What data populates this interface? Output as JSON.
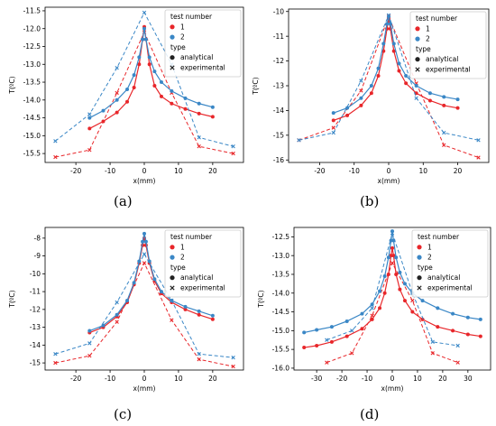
{
  "figure": {
    "legend_title_series": "test number",
    "legend_title_type": "type",
    "legend_type_entries": [
      "analytical",
      "experimental"
    ],
    "series_colors": {
      "1": "#e8262a",
      "2": "#3a87c6"
    }
  },
  "chart_data": [
    {
      "panel": "(a)",
      "type": "line",
      "xlabel": "x(mm)",
      "ylabel": "T(ºC)",
      "xlim": [
        -29,
        29
      ],
      "ylim": [
        -15.75,
        -11.4
      ],
      "xticks": [
        -20,
        -10,
        0,
        10,
        20
      ],
      "yticks": [
        -15.5,
        -15.0,
        -14.5,
        -14.0,
        -13.5,
        -13.0,
        -12.5,
        -12.0,
        -11.5
      ],
      "ytick_labels": [
        "-15.5",
        "-15.0",
        "-14.5",
        "-14.0",
        "-13.5",
        "-13.0",
        "-12.5",
        "-12.0",
        "-11.5"
      ],
      "legend_placement": "top-right",
      "series": [
        {
          "name": "1",
          "analytical": {
            "x": [
              -16,
              -12,
              -8,
              -5,
              -3,
              -1.5,
              -0.5,
              0,
              0.5,
              1.5,
              3,
              5,
              8,
              12,
              16,
              20
            ],
            "y": [
              -14.8,
              -14.6,
              -14.35,
              -14.05,
              -13.65,
              -13.0,
              -12.3,
              -11.95,
              -12.3,
              -13.0,
              -13.6,
              -13.9,
              -14.1,
              -14.25,
              -14.38,
              -14.47
            ]
          },
          "experimental": {
            "x": [
              -26,
              -16,
              -8,
              0,
              8,
              16,
              26
            ],
            "y": [
              -15.6,
              -15.4,
              -13.8,
              -12.1,
              -13.8,
              -15.3,
              -15.5
            ]
          }
        },
        {
          "name": "2",
          "analytical": {
            "x": [
              -16,
              -12,
              -8,
              -5,
              -3,
              -1.5,
              -0.5,
              0,
              0.5,
              1.5,
              3,
              5,
              8,
              12,
              16,
              20
            ],
            "y": [
              -14.5,
              -14.3,
              -14.0,
              -13.7,
              -13.3,
              -12.8,
              -12.3,
              -12.0,
              -12.3,
              -12.8,
              -13.2,
              -13.5,
              -13.75,
              -13.95,
              -14.1,
              -14.2
            ]
          },
          "experimental": {
            "x": [
              -26,
              -16,
              -8,
              0,
              8,
              16,
              26
            ],
            "y": [
              -15.15,
              -14.4,
              -13.1,
              -11.55,
              -13.0,
              -15.05,
              -15.3
            ]
          }
        }
      ]
    },
    {
      "panel": "(b)",
      "type": "line",
      "xlabel": "x(mm)",
      "ylabel": "T(ºC)",
      "xlim": [
        -29,
        29
      ],
      "ylim": [
        -16.1,
        -9.9
      ],
      "xticks": [
        -20,
        -10,
        0,
        10,
        20
      ],
      "yticks": [
        -16,
        -15,
        -14,
        -13,
        -12,
        -11,
        -10
      ],
      "ytick_labels": [
        "-16",
        "-15",
        "-14",
        "-13",
        "-12",
        "-11",
        "-10"
      ],
      "legend_placement": "top-right",
      "series": [
        {
          "name": "1",
          "analytical": {
            "x": [
              -16,
              -12,
              -8,
              -5,
              -3,
              -1.5,
              -0.5,
              0,
              0.5,
              1.5,
              3,
              5,
              8,
              12,
              16,
              20
            ],
            "y": [
              -14.4,
              -14.2,
              -13.8,
              -13.3,
              -12.6,
              -11.6,
              -10.7,
              -10.3,
              -10.7,
              -11.6,
              -12.4,
              -12.9,
              -13.3,
              -13.6,
              -13.8,
              -13.9
            ]
          },
          "experimental": {
            "x": [
              -26,
              -16,
              -8,
              0,
              8,
              16,
              26
            ],
            "y": [
              -15.2,
              -14.7,
              -13.2,
              -10.2,
              -12.9,
              -15.4,
              -15.9
            ]
          }
        },
        {
          "name": "2",
          "analytical": {
            "x": [
              -16,
              -12,
              -8,
              -5,
              -3,
              -1.5,
              -0.5,
              0,
              0.5,
              1.5,
              3,
              5,
              8,
              12,
              16,
              20
            ],
            "y": [
              -14.1,
              -13.9,
              -13.5,
              -13.0,
              -12.3,
              -11.3,
              -10.5,
              -10.2,
              -10.5,
              -11.3,
              -12.1,
              -12.6,
              -13.0,
              -13.3,
              -13.45,
              -13.55
            ]
          },
          "experimental": {
            "x": [
              -26,
              -16,
              -8,
              0,
              8,
              16,
              26
            ],
            "y": [
              -15.2,
              -14.9,
              -12.8,
              -10.15,
              -13.5,
              -14.9,
              -15.2
            ]
          }
        }
      ]
    },
    {
      "panel": "(c)",
      "type": "line",
      "xlabel": "x(mm)",
      "ylabel": "T(ºC)",
      "xlim": [
        -29,
        29
      ],
      "ylim": [
        -15.4,
        -7.4
      ],
      "xticks": [
        -20,
        -10,
        0,
        10,
        20
      ],
      "yticks": [
        -15,
        -14,
        -13,
        -12,
        -11,
        -10,
        -9,
        -8
      ],
      "ytick_labels": [
        "-15",
        "-14",
        "-13",
        "-12",
        "-11",
        "-10",
        "-9",
        "-8"
      ],
      "legend_placement": "top-right",
      "series": [
        {
          "name": "1",
          "analytical": {
            "x": [
              -16,
              -12,
              -8,
              -5,
              -3,
              -1.5,
              -0.5,
              0,
              0.5,
              1.5,
              3,
              5,
              8,
              12,
              16,
              20
            ],
            "y": [
              -13.3,
              -13.0,
              -12.4,
              -11.6,
              -10.6,
              -9.4,
              -8.4,
              -8.0,
              -8.4,
              -9.4,
              -10.4,
              -11.1,
              -11.6,
              -12.0,
              -12.3,
              -12.55
            ]
          },
          "experimental": {
            "x": [
              -26,
              -16,
              -8,
              0,
              8,
              16,
              26
            ],
            "y": [
              -15.0,
              -14.6,
              -12.7,
              -9.4,
              -12.6,
              -14.8,
              -15.2
            ]
          }
        },
        {
          "name": "2",
          "analytical": {
            "x": [
              -16,
              -12,
              -8,
              -5,
              -3,
              -1.5,
              -0.5,
              0,
              0.5,
              1.5,
              3,
              5,
              8,
              12,
              16,
              20
            ],
            "y": [
              -13.2,
              -12.9,
              -12.3,
              -11.5,
              -10.5,
              -9.3,
              -8.2,
              -7.75,
              -8.2,
              -9.3,
              -10.3,
              -11.0,
              -11.5,
              -11.85,
              -12.1,
              -12.35
            ]
          },
          "experimental": {
            "x": [
              -26,
              -16,
              -8,
              0,
              8,
              16,
              26
            ],
            "y": [
              -14.5,
              -13.9,
              -11.6,
              -8.9,
              -11.5,
              -14.5,
              -14.7
            ]
          }
        }
      ]
    },
    {
      "panel": "(d)",
      "type": "line",
      "xlabel": "x(mm)",
      "ylabel": "T(ºC)",
      "xlim": [
        -39,
        39
      ],
      "ylim": [
        -16.05,
        -12.25
      ],
      "xticks": [
        -30,
        -20,
        -10,
        0,
        10,
        20,
        30
      ],
      "yticks": [
        -16.0,
        -15.5,
        -15.0,
        -14.5,
        -14.0,
        -13.5,
        -13.0,
        -12.5
      ],
      "ytick_labels": [
        "-16.0",
        "-15.5",
        "-15.0",
        "-14.5",
        "-14.0",
        "-13.5",
        "-13.0",
        "-12.5"
      ],
      "legend_placement": "top-right",
      "series": [
        {
          "name": "1",
          "analytical": {
            "x": [
              -35,
              -30,
              -24,
              -18,
              -12,
              -8,
              -5,
              -3,
              -1.5,
              -0.5,
              0,
              0.5,
              1.5,
              3,
              5,
              8,
              12,
              18,
              24,
              30,
              35
            ],
            "y": [
              -15.45,
              -15.4,
              -15.3,
              -15.15,
              -14.95,
              -14.7,
              -14.4,
              -14.0,
              -13.5,
              -13.0,
              -12.8,
              -13.0,
              -13.5,
              -13.9,
              -14.2,
              -14.5,
              -14.7,
              -14.9,
              -15.0,
              -15.1,
              -15.15
            ]
          },
          "experimental": {
            "x": [
              -26,
              -16,
              -8,
              0,
              8,
              16,
              26
            ],
            "y": [
              -15.85,
              -15.6,
              -14.6,
              -13.2,
              -14.2,
              -15.6,
              -15.85
            ]
          }
        },
        {
          "name": "2",
          "analytical": {
            "x": [
              -35,
              -30,
              -24,
              -18,
              -12,
              -8,
              -5,
              -3,
              -1.5,
              -0.5,
              0,
              0.5,
              1.5,
              3,
              5,
              8,
              12,
              18,
              24,
              30,
              35
            ],
            "y": [
              -15.05,
              -14.98,
              -14.9,
              -14.75,
              -14.55,
              -14.3,
              -13.95,
              -13.55,
              -13.05,
              -12.6,
              -12.35,
              -12.6,
              -13.05,
              -13.45,
              -13.75,
              -14.0,
              -14.2,
              -14.4,
              -14.55,
              -14.65,
              -14.7
            ]
          },
          "experimental": {
            "x": [
              -26,
              -16,
              -8,
              0,
              8,
              16,
              26
            ],
            "y": [
              -15.25,
              -15.0,
              -14.4,
              -12.4,
              -14.0,
              -15.3,
              -15.4
            ]
          }
        }
      ]
    }
  ]
}
